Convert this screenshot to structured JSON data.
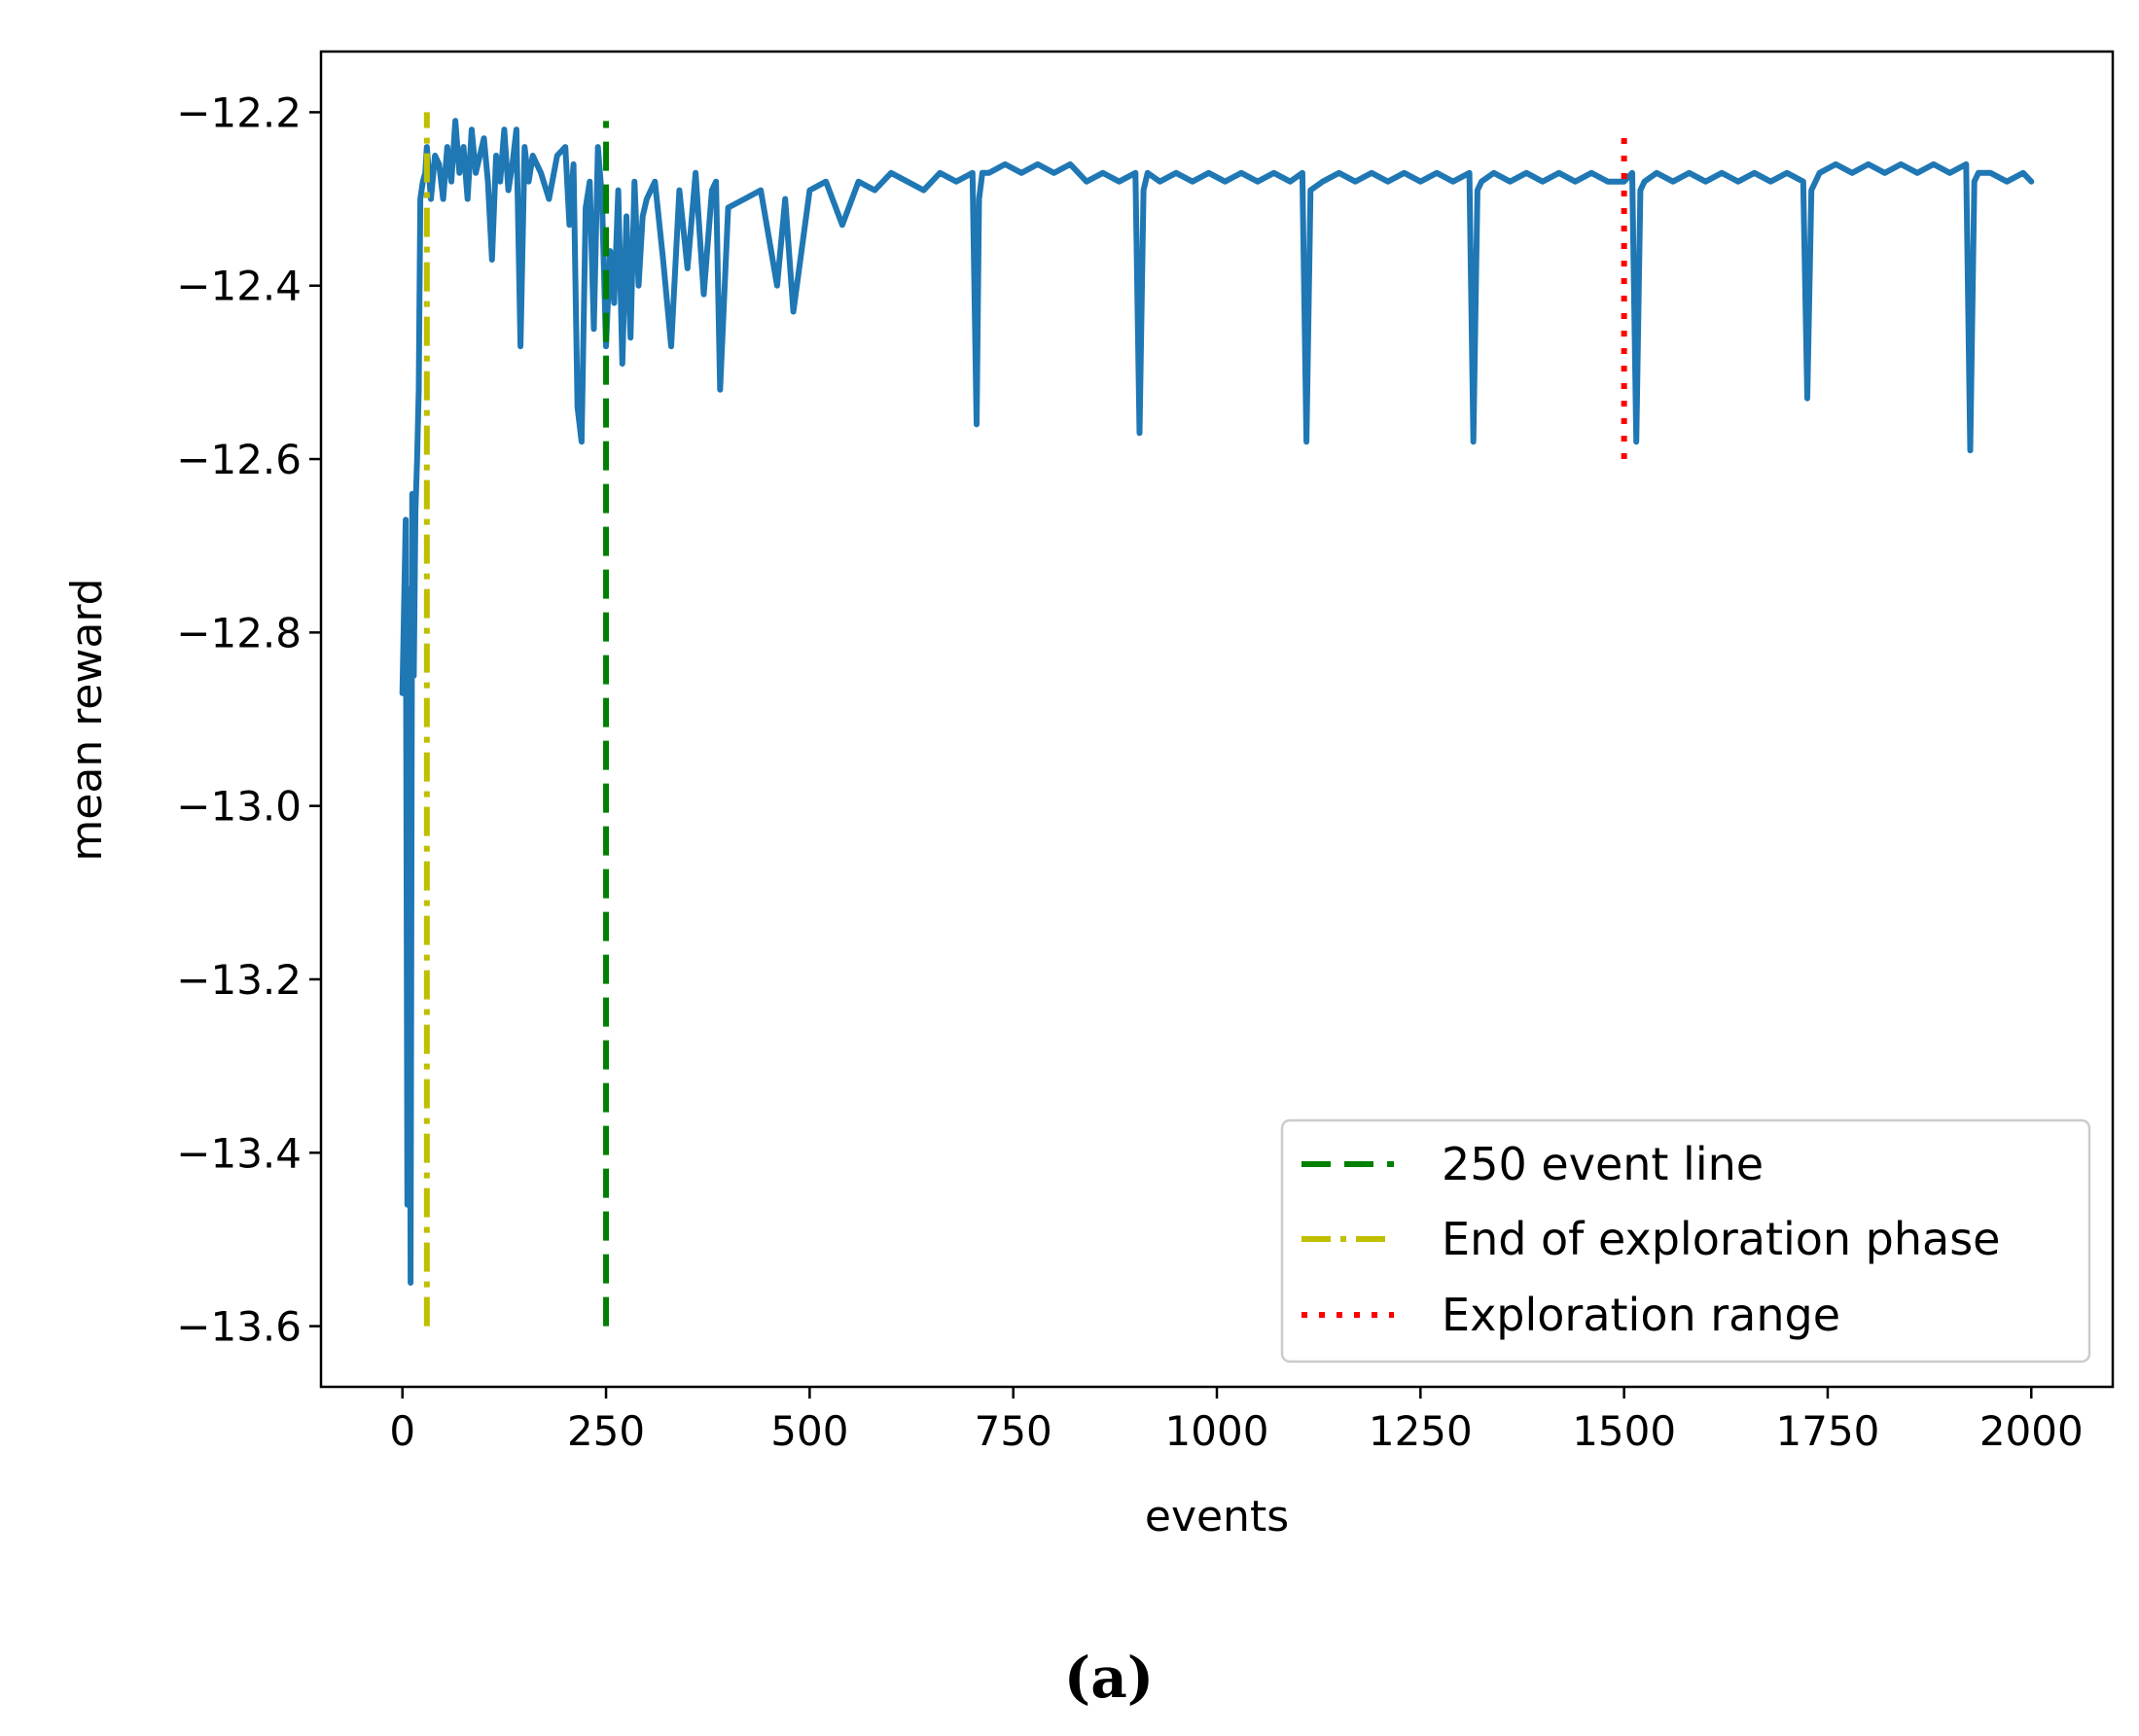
{
  "chart_data": {
    "type": "line",
    "title": "",
    "xlabel": "events",
    "ylabel": "mean reward",
    "xlim": [
      -100,
      2100
    ],
    "ylim": [
      -13.67,
      -12.13
    ],
    "xticks": [
      0,
      250,
      500,
      750,
      1000,
      1250,
      1500,
      1750,
      2000
    ],
    "xtick_labels": [
      "0",
      "250",
      "500",
      "750",
      "1000",
      "1250",
      "1500",
      "1750",
      "2000"
    ],
    "yticks": [
      -12.2,
      -12.4,
      -12.6,
      -12.8,
      -13.0,
      -13.2,
      -13.4,
      -13.6
    ],
    "ytick_labels": [
      "−12.2",
      "−12.4",
      "−12.6",
      "−12.8",
      "−13.0",
      "−13.2",
      "−13.4",
      "−13.6"
    ],
    "series": [
      {
        "name": "mean reward",
        "color": "#1f77b4",
        "x": [
          0,
          4,
          6,
          8,
          10,
          12,
          14,
          16,
          18,
          20,
          22,
          25,
          28,
          30,
          35,
          40,
          45,
          50,
          55,
          60,
          65,
          70,
          75,
          80,
          85,
          90,
          95,
          100,
          105,
          110,
          115,
          120,
          125,
          130,
          135,
          140,
          145,
          150,
          155,
          160,
          170,
          180,
          190,
          200,
          205,
          210,
          215,
          220,
          225,
          230,
          235,
          240,
          245,
          250,
          255,
          260,
          265,
          270,
          275,
          280,
          285,
          290,
          295,
          300,
          310,
          320,
          330,
          340,
          350,
          360,
          370,
          380,
          385,
          390,
          400,
          420,
          440,
          460,
          470,
          480,
          500,
          520,
          540,
          560,
          580,
          600,
          620,
          640,
          660,
          680,
          700,
          705,
          708,
          712,
          720,
          740,
          760,
          780,
          800,
          820,
          840,
          860,
          880,
          900,
          905,
          910,
          915,
          930,
          950,
          970,
          990,
          1010,
          1030,
          1050,
          1070,
          1090,
          1105,
          1110,
          1115,
          1130,
          1150,
          1170,
          1190,
          1210,
          1230,
          1250,
          1270,
          1290,
          1310,
          1315,
          1320,
          1325,
          1340,
          1360,
          1380,
          1400,
          1420,
          1440,
          1460,
          1480,
          1500,
          1510,
          1515,
          1520,
          1525,
          1540,
          1560,
          1580,
          1600,
          1620,
          1640,
          1660,
          1680,
          1700,
          1720,
          1725,
          1730,
          1740,
          1760,
          1780,
          1800,
          1820,
          1840,
          1860,
          1880,
          1900,
          1920,
          1925,
          1930,
          1935,
          1950,
          1970,
          1990,
          2000
        ],
        "y": [
          -12.87,
          -12.67,
          -13.46,
          -12.75,
          -13.55,
          -12.64,
          -12.85,
          -12.66,
          -12.6,
          -12.52,
          -12.3,
          -12.28,
          -12.27,
          -12.24,
          -12.3,
          -12.25,
          -12.26,
          -12.3,
          -12.24,
          -12.28,
          -12.21,
          -12.27,
          -12.24,
          -12.3,
          -12.22,
          -12.27,
          -12.25,
          -12.23,
          -12.28,
          -12.37,
          -12.25,
          -12.28,
          -12.22,
          -12.29,
          -12.26,
          -12.22,
          -12.47,
          -12.24,
          -12.28,
          -12.25,
          -12.27,
          -12.3,
          -12.25,
          -12.24,
          -12.33,
          -12.26,
          -12.54,
          -12.58,
          -12.31,
          -12.28,
          -12.45,
          -12.24,
          -12.3,
          -12.47,
          -12.36,
          -12.42,
          -12.29,
          -12.49,
          -12.32,
          -12.46,
          -12.28,
          -12.4,
          -12.32,
          -12.3,
          -12.28,
          -12.37,
          -12.47,
          -12.29,
          -12.38,
          -12.27,
          -12.41,
          -12.29,
          -12.28,
          -12.52,
          -12.31,
          -12.3,
          -12.29,
          -12.4,
          -12.3,
          -12.43,
          -12.29,
          -12.28,
          -12.33,
          -12.28,
          -12.29,
          -12.27,
          -12.28,
          -12.29,
          -12.27,
          -12.28,
          -12.27,
          -12.56,
          -12.3,
          -12.27,
          -12.27,
          -12.26,
          -12.27,
          -12.26,
          -12.27,
          -12.26,
          -12.28,
          -12.27,
          -12.28,
          -12.27,
          -12.57,
          -12.29,
          -12.27,
          -12.28,
          -12.27,
          -12.28,
          -12.27,
          -12.28,
          -12.27,
          -12.28,
          -12.27,
          -12.28,
          -12.27,
          -12.58,
          -12.29,
          -12.28,
          -12.27,
          -12.28,
          -12.27,
          -12.28,
          -12.27,
          -12.28,
          -12.27,
          -12.28,
          -12.27,
          -12.58,
          -12.29,
          -12.28,
          -12.27,
          -12.28,
          -12.27,
          -12.28,
          -12.27,
          -12.28,
          -12.27,
          -12.28,
          -12.28,
          -12.27,
          -12.58,
          -12.29,
          -12.28,
          -12.27,
          -12.28,
          -12.27,
          -12.28,
          -12.27,
          -12.28,
          -12.27,
          -12.28,
          -12.27,
          -12.28,
          -12.53,
          -12.29,
          -12.27,
          -12.26,
          -12.27,
          -12.26,
          -12.27,
          -12.26,
          -12.27,
          -12.26,
          -12.27,
          -12.26,
          -12.59,
          -12.28,
          -12.27,
          -12.27,
          -12.28,
          -12.27,
          -12.28
        ]
      }
    ],
    "vlines": [
      {
        "name": "250 event line",
        "x": 250,
        "ymin": -13.6,
        "ymax": -12.21,
        "color": "#008000",
        "style": "dashed"
      },
      {
        "name": "End of exploration phase",
        "x": 30,
        "ymin": -13.6,
        "ymax": -12.2,
        "color": "#bfbf00",
        "style": "dashdot"
      },
      {
        "name": "Exploration range",
        "x": 1500,
        "ymin": -12.6,
        "ymax": -12.22,
        "color": "#ff0000",
        "style": "dotted"
      }
    ],
    "legend": {
      "position": "lower right",
      "entries": [
        {
          "label": "250 event line",
          "color": "#008000",
          "style": "dashed"
        },
        {
          "label": "End of exploration phase",
          "color": "#bfbf00",
          "style": "dashdot"
        },
        {
          "label": "Exploration range",
          "color": "#ff0000",
          "style": "dotted"
        }
      ]
    },
    "caption": "(a)"
  }
}
